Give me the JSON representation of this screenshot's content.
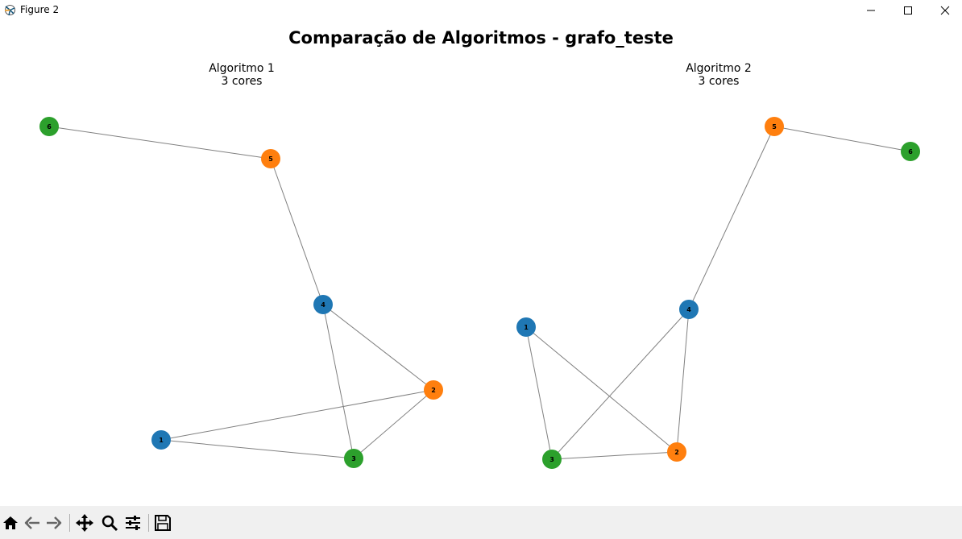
{
  "window": {
    "title": "Figure 2",
    "controls": [
      "minimize",
      "maximize",
      "close"
    ]
  },
  "figure": {
    "suptitle": "Comparação de Algoritmos - grafo_teste"
  },
  "axes": [
    {
      "title_line1": "Algoritmo 1",
      "title_line2": "3 cores"
    },
    {
      "title_line1": "Algoritmo 2",
      "title_line2": "3 cores"
    }
  ],
  "graphs": [
    {
      "nodes": [
        {
          "id": "1",
          "color": "#1f77b4"
        },
        {
          "id": "2",
          "color": "#ff7f0e"
        },
        {
          "id": "3",
          "color": "#2ca02c"
        },
        {
          "id": "4",
          "color": "#1f77b4"
        },
        {
          "id": "5",
          "color": "#ff7f0e"
        },
        {
          "id": "6",
          "color": "#2ca02c"
        }
      ],
      "edges": [
        [
          "1",
          "2"
        ],
        [
          "1",
          "3"
        ],
        [
          "2",
          "3"
        ],
        [
          "2",
          "4"
        ],
        [
          "3",
          "4"
        ],
        [
          "4",
          "5"
        ],
        [
          "5",
          "6"
        ]
      ]
    },
    {
      "nodes": [
        {
          "id": "1",
          "color": "#1f77b4"
        },
        {
          "id": "2",
          "color": "#ff7f0e"
        },
        {
          "id": "3",
          "color": "#2ca02c"
        },
        {
          "id": "4",
          "color": "#1f77b4"
        },
        {
          "id": "5",
          "color": "#ff7f0e"
        },
        {
          "id": "6",
          "color": "#2ca02c"
        }
      ],
      "edges": [
        [
          "1",
          "2"
        ],
        [
          "1",
          "3"
        ],
        [
          "2",
          "3"
        ],
        [
          "2",
          "4"
        ],
        [
          "3",
          "4"
        ],
        [
          "4",
          "5"
        ],
        [
          "5",
          "6"
        ]
      ]
    }
  ],
  "colors": {
    "edge": "#808080",
    "toolbar_bg": "#f0f0f0"
  },
  "toolbar": {
    "tools": [
      {
        "name": "home",
        "icon": "home-icon"
      },
      {
        "name": "back",
        "icon": "back-arrow-icon"
      },
      {
        "name": "forward",
        "icon": "forward-arrow-icon"
      },
      {
        "name": "pan",
        "icon": "move-icon"
      },
      {
        "name": "zoom",
        "icon": "magnifier-icon"
      },
      {
        "name": "configure-subplots",
        "icon": "sliders-icon"
      },
      {
        "name": "save",
        "icon": "floppy-disk-icon"
      }
    ]
  }
}
